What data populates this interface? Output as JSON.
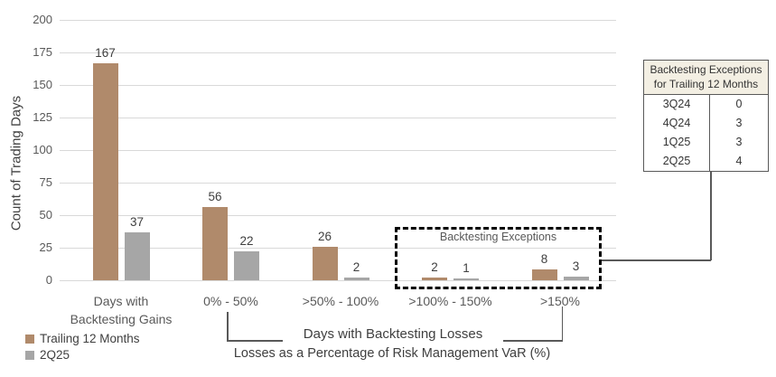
{
  "chart_data": {
    "type": "bar",
    "title": "",
    "ylabel": "Count of Trading Days",
    "ylim": [
      0,
      200
    ],
    "ytick_step": 25,
    "grid": true,
    "legend_position": "bottom-left",
    "categories": [
      "Days with\nBacktesting Gains",
      "0% - 50%",
      ">50% - 100%",
      ">100% - 150%",
      ">150%"
    ],
    "series": [
      {
        "name": "Trailing 12 Months",
        "color": "#B08A6B",
        "values": [
          167,
          56,
          26,
          2,
          8
        ]
      },
      {
        "name": "2Q25",
        "color": "#A6A6A6",
        "values": [
          37,
          22,
          2,
          1,
          3
        ]
      }
    ],
    "annotation": "Backtesting Exceptions",
    "xlabel_line1": "Days with Backtesting Losses",
    "xlabel_line2": "Losses as a Percentage of Risk Management VaR (%)"
  },
  "legend": {
    "items": [
      {
        "label": "Trailing 12 Months",
        "color": "#B08A6B"
      },
      {
        "label": "2Q25",
        "color": "#A6A6A6"
      }
    ]
  },
  "side_table": {
    "title_line1": "Backtesting Exceptions",
    "title_line2": "for Trailing 12 Months",
    "rows": [
      {
        "quarter": "3Q24",
        "value": "0"
      },
      {
        "quarter": "4Q24",
        "value": "3"
      },
      {
        "quarter": "1Q25",
        "value": "3"
      },
      {
        "quarter": "2Q25",
        "value": "4"
      }
    ]
  },
  "colors": {
    "bar_brown": "#B08A6B",
    "bar_gray": "#A6A6A6",
    "gridline": "#D9D9D9",
    "text": "#595959",
    "table_header_bg": "#F3EFE3",
    "dashed_box": "#000000"
  }
}
